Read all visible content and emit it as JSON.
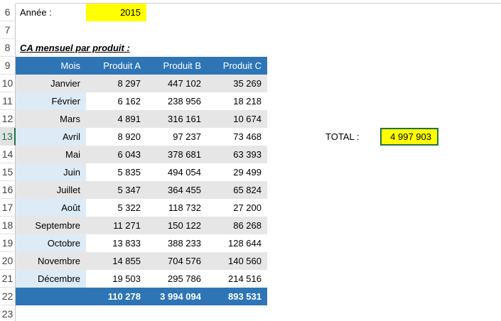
{
  "row_numbers": [
    6,
    7,
    8,
    9,
    10,
    11,
    12,
    13,
    14,
    15,
    16,
    17,
    18,
    19,
    20,
    21,
    22,
    23
  ],
  "year_label": "Année :",
  "year_value": "2015",
  "table_title": "CA mensuel par produit :",
  "table": {
    "header": [
      "Mois",
      "Produit A",
      "Produit B",
      "Produit C"
    ],
    "rows": [
      [
        "Janvier",
        "8 297",
        "447 102",
        "35 269"
      ],
      [
        "Février",
        "6 162",
        "238 956",
        "18 218"
      ],
      [
        "Mars",
        "4 891",
        "316 161",
        "10 674"
      ],
      [
        "Avril",
        "8 920",
        "97 237",
        "73 468"
      ],
      [
        "Mai",
        "6 043",
        "378 681",
        "63 393"
      ],
      [
        "Juin",
        "5 835",
        "494 054",
        "29 499"
      ],
      [
        "Juillet",
        "5 347",
        "364 455",
        "65 824"
      ],
      [
        "Août",
        "5 322",
        "118 732",
        "27 200"
      ],
      [
        "Septembre",
        "11 271",
        "150 122",
        "86 268"
      ],
      [
        "Octobre",
        "13 833",
        "388 233",
        "128 644"
      ],
      [
        "Novembre",
        "14 855",
        "704 576",
        "140 560"
      ],
      [
        "Décembre",
        "19 503",
        "295 786",
        "214 516"
      ]
    ],
    "totals": [
      "110 278",
      "3 994 094",
      "893 531"
    ]
  },
  "total_label": "TOTAL :",
  "total_value": "4 997 903"
}
